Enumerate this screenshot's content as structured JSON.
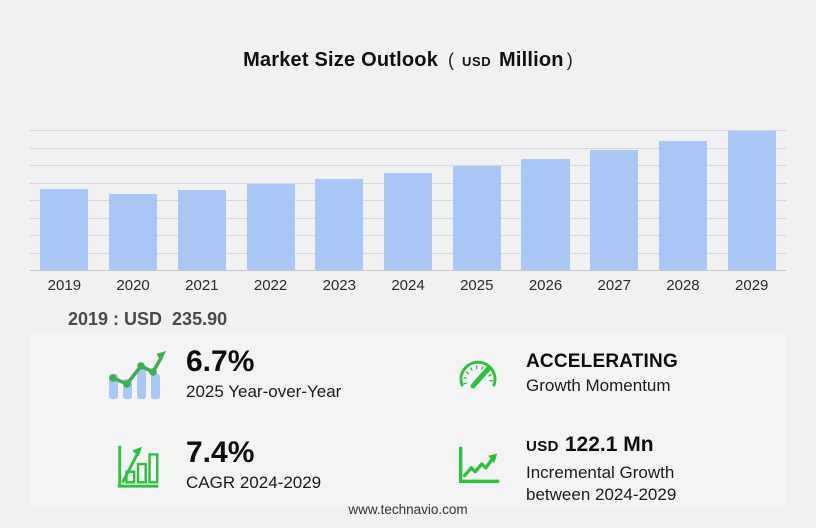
{
  "title": {
    "main": "Market Size Outlook",
    "paren_open": "(",
    "currency": "USD",
    "unit": "Million",
    "paren_close": ")"
  },
  "chart_data": {
    "type": "bar",
    "title": "Market Size Outlook (USD Million)",
    "categories": [
      "2019",
      "2020",
      "2021",
      "2022",
      "2023",
      "2024",
      "2025",
      "2026",
      "2027",
      "2028",
      "2029"
    ],
    "values": [
      235.9,
      221.3,
      235.0,
      250.7,
      267.5,
      284.8,
      303.9,
      324.4,
      351.0,
      377.5,
      406.9
    ],
    "xlabel": "",
    "ylabel": "",
    "ylim": [
      0,
      410
    ],
    "gridline_count": 9,
    "grid": true,
    "legend": "none",
    "bar_color": "#a9c8f7"
  },
  "base_year_label": "2019 : USD  235.90",
  "stats": [
    {
      "value": "6.7%",
      "label": "2025 Year-over-Year",
      "icon": "bar-line-growth-icon"
    },
    {
      "value": "ACCELERATING",
      "label": "Growth Momentum",
      "icon": "gauge-icon"
    },
    {
      "value": "7.4%",
      "label": "CAGR 2024-2029",
      "icon": "bar-chart-arrow-icon"
    },
    {
      "value_prefix": "USD",
      "value": "122.1 Mn",
      "label": "Incremental Growth between 2024-2029",
      "icon": "line-chart-arrow-icon"
    }
  ],
  "footer": {
    "website": "www.technavio.com"
  },
  "colors": {
    "page_bg": "#f1f1f3",
    "panel_bg": "#f4f4f6",
    "bar_blue": "#a9c8f7",
    "icon_green": "#2ec13e",
    "line_green": "#3fae4e",
    "grid_line": "#d7d7d9",
    "axis_line": "#c7c7c9",
    "text_dark": "#141414",
    "text_mid": "#4a4a4a"
  }
}
